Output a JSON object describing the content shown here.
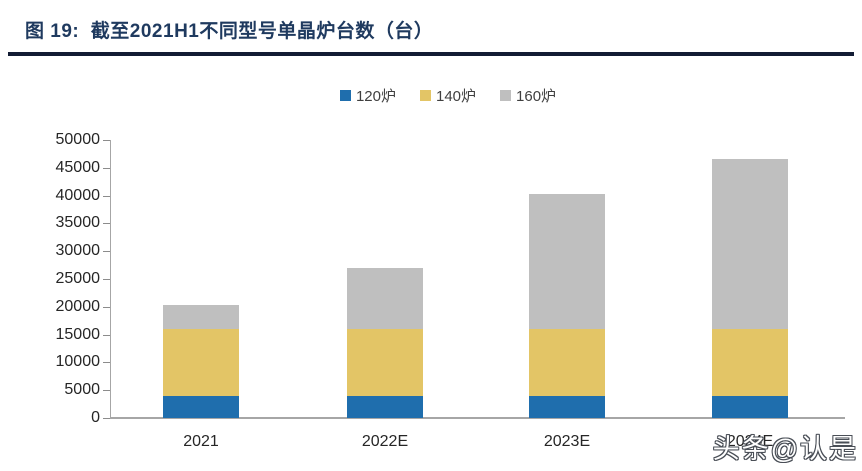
{
  "header": {
    "title": "图 19:  截至2021H1不同型号单晶炉台数（台）"
  },
  "colors": {
    "title_navy": "#1f3a5f",
    "rule_navy": "#121c34",
    "axis_gray": "#a6a6a6",
    "series_blue": "#1f6ead",
    "series_yellow": "#e3c566",
    "series_gray": "#bfbfbf"
  },
  "chart_data": {
    "type": "bar",
    "stacked": true,
    "title": "截至2021H1不同型号单晶炉台数（台）",
    "xlabel": "",
    "ylabel": "",
    "categories": [
      "2021",
      "2022E",
      "2023E",
      "2024E"
    ],
    "series": [
      {
        "name": "120炉",
        "color": "#1f6ead",
        "values": [
          4000,
          4000,
          4000,
          4000
        ]
      },
      {
        "name": "140炉",
        "color": "#e3c566",
        "values": [
          12000,
          12000,
          12000,
          12000
        ]
      },
      {
        "name": "160炉",
        "color": "#bfbfbf",
        "values": [
          4400,
          11000,
          24300,
          30600
        ]
      }
    ],
    "stack_totals": [
      20400,
      27000,
      40300,
      46600
    ],
    "ylim": [
      0,
      50000
    ],
    "y_tick_step": 5000,
    "y_ticks": [
      "0",
      "5000",
      "10000",
      "15000",
      "20000",
      "25000",
      "30000",
      "35000",
      "40000",
      "45000",
      "50000"
    ],
    "grid": false,
    "legend_position": "top"
  },
  "watermark": {
    "text": "头条@认是"
  }
}
